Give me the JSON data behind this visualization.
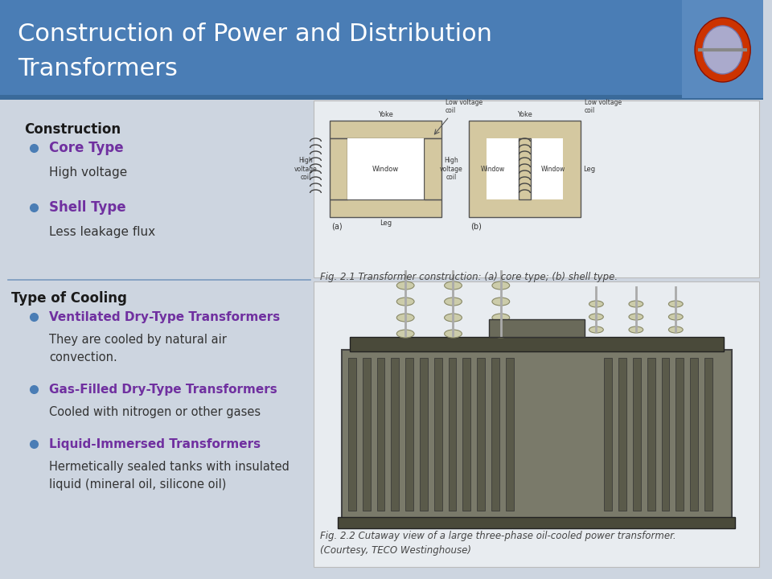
{
  "title_line1": "Construction of Power and Distribution",
  "title_line2": "Transformers",
  "title_bg_color": "#4a7db5",
  "title_text_color": "#ffffff",
  "body_bg_color": "#cdd5e0",
  "section1_header": "Construction",
  "section1_header_color": "#1a1a1a",
  "section1_items": [
    {
      "bullet": "Core Type",
      "bullet_color": "#7030a0",
      "desc": "High voltage"
    },
    {
      "bullet": "Shell Type",
      "bullet_color": "#7030a0",
      "desc": "Less leakage flux"
    }
  ],
  "section2_header": "Type of Cooling",
  "section2_header_color": "#1a1a1a",
  "section2_items": [
    {
      "bullet": "Ventilated Dry-Type Transformers",
      "bullet_color": "#7030a0",
      "desc": "They are cooled by natural air\nconvection."
    },
    {
      "bullet": "Gas-Filled Dry-Type Transformers",
      "bullet_color": "#7030a0",
      "desc": "Cooled with nitrogen or other gases"
    },
    {
      "bullet": "Liquid-Immersed Transformers",
      "bullet_color": "#7030a0",
      "desc": "Hermetically sealed tanks with insulated\nliquid (mineral oil, silicone oil)"
    }
  ],
  "fig1_caption": "Fig. 2.1 Transformer construction: (a) core type; (b) shell type.",
  "fig2_caption_line1": "Fig. 2.2 Cutaway view of a large three-phase oil-cooled power transformer.",
  "fig2_caption_line2": "(Courtesy, TECO Westinghouse)",
  "bullet_dot_color": "#4a7db5",
  "right_panel_bg": "#e8ecf0",
  "desc_text_color": "#333333"
}
